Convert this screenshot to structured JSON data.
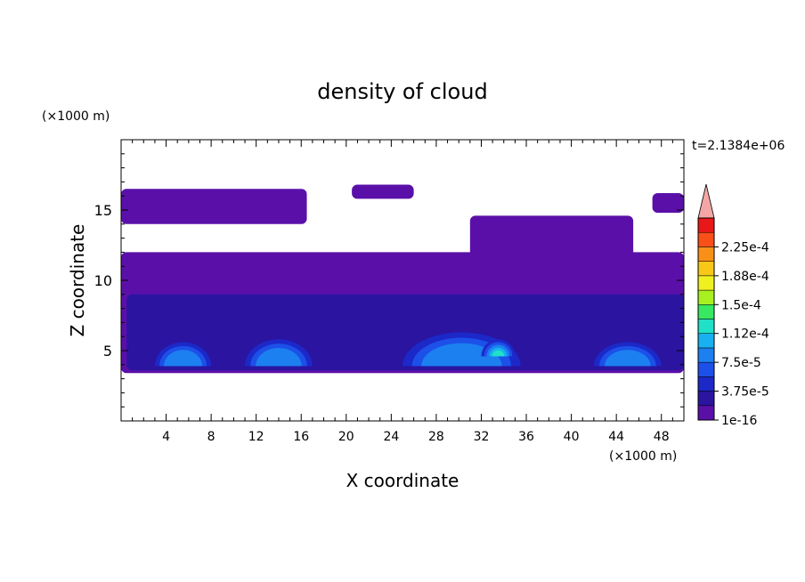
{
  "chart_data": {
    "type": "heatmap",
    "title": "density of cloud",
    "xlabel": "X coordinate",
    "ylabel": "Z coordinate",
    "x_unit": "(×1000 m)",
    "y_unit": "(×1000 m)",
    "time_label": "t=2.1384e+06",
    "xlim": [
      0,
      50
    ],
    "ylim": [
      0,
      20
    ],
    "x_ticks": [
      "4",
      "8",
      "12",
      "16",
      "20",
      "24",
      "28",
      "32",
      "36",
      "40",
      "44",
      "48"
    ],
    "x_tick_values": [
      4,
      8,
      12,
      16,
      20,
      24,
      28,
      32,
      36,
      40,
      44,
      48
    ],
    "y_ticks": [
      "5",
      "10",
      "15"
    ],
    "y_tick_values": [
      5,
      10,
      15
    ],
    "colorbar": {
      "labels": [
        "1e-16",
        "3.75e-5",
        "7.5e-5",
        "1.12e-4",
        "1.5e-4",
        "1.88e-4",
        "2.25e-4"
      ],
      "levels": [
        1e-16,
        1.875e-05,
        3.75e-05,
        5.625e-05,
        7.5e-05,
        9.375e-05,
        0.0001125,
        0.00013125,
        0.00015,
        0.00016875,
        0.0001875,
        0.00020625,
        0.000225,
        0.00024375
      ],
      "colors": [
        "#5a10a8",
        "#2a14a0",
        "#1c28c8",
        "#1c50e8",
        "#1c80f0",
        "#18b0f0",
        "#20e0c8",
        "#38e860",
        "#a8f020",
        "#f0f020",
        "#f8c818",
        "#f89018",
        "#f85018",
        "#e81818"
      ],
      "extend_color": "#f4a6a6"
    },
    "cloud_regions": [
      {
        "level": 0,
        "x": [
          0.0,
          50.0
        ],
        "z": [
          3.4,
          12.0
        ],
        "description": "main cloud layer"
      },
      {
        "level": 0,
        "x": [
          0.0,
          16.5
        ],
        "z": [
          14.0,
          16.5
        ],
        "description": "upper cloud band left"
      },
      {
        "level": 0,
        "x": [
          20.5,
          26.0
        ],
        "z": [
          15.8,
          16.8
        ],
        "description": "upper cloud patch"
      },
      {
        "level": 0,
        "x": [
          31.0,
          45.5
        ],
        "z": [
          11.5,
          14.6
        ],
        "description": "upper cloud band right"
      },
      {
        "level": 0,
        "x": [
          47.2,
          50.0
        ],
        "z": [
          14.8,
          16.2
        ],
        "description": "upper cloud right edge"
      },
      {
        "level": 1,
        "x": [
          0.5,
          50.0
        ],
        "z": [
          3.6,
          9.0
        ],
        "description": "lower dense layer"
      },
      {
        "level": 4,
        "x": [
          3.0,
          8.0
        ],
        "z": [
          3.9,
          5.6
        ],
        "description": "cell near x=5"
      },
      {
        "level": 4,
        "x": [
          11.0,
          17.0
        ],
        "z": [
          3.9,
          5.8
        ],
        "description": "cell near x=14"
      },
      {
        "level": 4,
        "x": [
          25.0,
          35.5
        ],
        "z": [
          3.9,
          6.3
        ],
        "description": "cells near x=28–34"
      },
      {
        "level": 4,
        "x": [
          42.0,
          48.0
        ],
        "z": [
          3.9,
          5.6
        ],
        "description": "cell near x=45"
      },
      {
        "level": 6,
        "x": [
          32.0,
          35.0
        ],
        "z": [
          4.6,
          5.8
        ],
        "description": "core near x=33"
      }
    ]
  }
}
